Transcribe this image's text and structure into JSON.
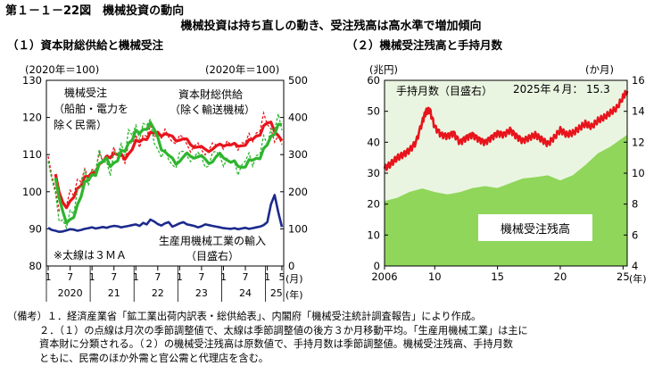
{
  "figure": {
    "title": "第１－１－22図　機械投資の動向",
    "subtitle": "機械投資は持ち直しの動き、受注残高は高水準で増加傾向"
  },
  "panel1": {
    "title": "（１）資本財総供給と機械受注",
    "left_unit": "(2020年＝100)",
    "right_unit": "(2020年＝100)",
    "label_orders": [
      "機械受注",
      "（船舶・電力を",
      "除く民需）"
    ],
    "label_supply": [
      "資本財総供給",
      "（除く輸送機械）"
    ],
    "label_imports": [
      "生産用機械工業の輸入",
      "（目盛右）"
    ],
    "note_3ma": "※太線は３ＭＡ",
    "month_label": "(月)",
    "year_label": "(年)"
  },
  "panel2": {
    "title": "（２）機械受注残高と手持月数",
    "left_unit": "(兆円)",
    "right_unit": "(か月)",
    "label_months": "手持月数（目盛右）",
    "label_latest_prefix": "2025年４月：",
    "label_latest_value": "15.3",
    "label_backlog": "機械受注残高",
    "year_label": "(年)"
  },
  "colors": {
    "red": "#e8141c",
    "green": "#2eb52e",
    "navy": "#1b2a8c",
    "area": "#8fd65a",
    "area_bg": "#eaf5e1",
    "latest_value": "#8a8aa8"
  },
  "chart_data": [
    {
      "type": "line",
      "title": "（１）資本財総供給と機械受注",
      "x_start": "2020-01",
      "x_end": "2025-05",
      "x_tick_months": [
        "1",
        "7",
        "1",
        "7",
        "1",
        "7",
        "1",
        "7",
        "1",
        "7",
        "1",
        "5"
      ],
      "x_tick_years": [
        "2020",
        "21",
        "22",
        "23",
        "24",
        "25"
      ],
      "ylim_left": [
        80,
        130
      ],
      "yticks_left": [
        "80",
        "90",
        "100",
        "110",
        "120",
        "130"
      ],
      "ylim_right": [
        0,
        500
      ],
      "yticks_right": [
        "0",
        "100",
        "200",
        "300",
        "400",
        "500"
      ],
      "series": [
        {
          "name": "資本財総供給（除く輸送機械）",
          "axis": "left",
          "color": "red",
          "style": "dotted-monthly + thick-3MA",
          "values": [
            108,
            104,
            100,
            97,
            95,
            96,
            99,
            101,
            103,
            103,
            104,
            105,
            106,
            107,
            108,
            109,
            110,
            111,
            110,
            109,
            109,
            110,
            112,
            113,
            114,
            114,
            115,
            115,
            116,
            116,
            116,
            115,
            115,
            115,
            114,
            114,
            114,
            114,
            113,
            112,
            112,
            112,
            111,
            111,
            112,
            112,
            112,
            113,
            113,
            113,
            112,
            112,
            113,
            113,
            113,
            114,
            115,
            116,
            117,
            119,
            119,
            117,
            115,
            113,
            113
          ]
        },
        {
          "name": "機械受注（船舶・電力を除く民需）",
          "axis": "left",
          "color": "green",
          "style": "dotted-monthly + thick-3MA",
          "values": [
            106,
            103,
            99,
            95,
            91,
            90,
            93,
            97,
            100,
            102,
            103,
            104,
            106,
            107,
            108,
            109,
            108,
            107,
            108,
            110,
            112,
            113,
            115,
            115,
            116,
            117,
            118,
            118,
            117,
            115,
            112,
            110,
            109,
            109,
            108,
            108,
            109,
            110,
            110,
            110,
            109,
            109,
            109,
            108,
            108,
            109,
            110,
            110,
            109,
            108,
            107,
            107,
            107,
            107,
            108,
            108,
            109,
            110,
            111,
            112,
            114,
            117,
            119,
            118,
            117
          ]
        },
        {
          "name": "生産用機械工業の輸入（目盛右）",
          "axis": "right",
          "color": "navy",
          "style": "thick",
          "values": [
            103,
            97,
            95,
            92,
            93,
            96,
            99,
            98,
            95,
            97,
            100,
            102,
            104,
            101,
            103,
            105,
            103,
            106,
            108,
            107,
            104,
            106,
            108,
            110,
            112,
            108,
            116,
            112,
            125,
            120,
            113,
            109,
            115,
            118,
            106,
            110,
            115,
            118,
            112,
            110,
            108,
            104,
            107,
            112,
            110,
            108,
            106,
            104,
            102,
            101,
            100,
            102,
            99,
            101,
            103,
            100,
            102,
            104,
            106,
            110,
            118,
            166,
            191,
            145,
            105
          ]
        }
      ]
    },
    {
      "type": "area",
      "title": "（２）機械受注残高と手持月数",
      "x_start": 2006,
      "x_end": 2025.33,
      "x_ticks": [
        "2006",
        "10",
        "15",
        "20",
        "25"
      ],
      "ylim_left": [
        0,
        60
      ],
      "yticks_left": [
        "0",
        "10",
        "20",
        "30",
        "40",
        "50",
        "60"
      ],
      "ylim_right": [
        4,
        16
      ],
      "yticks_right": [
        "4",
        "6",
        "8",
        "10",
        "12",
        "14",
        "16"
      ],
      "series": [
        {
          "name": "機械受注残高",
          "axis": "left",
          "color": "area",
          "years": [
            2006,
            2007,
            2008,
            2009,
            2010,
            2011,
            2012,
            2013,
            2014,
            2015,
            2016,
            2017,
            2018,
            2019,
            2020,
            2021,
            2022,
            2023,
            2024,
            2025.33
          ],
          "values": [
            21,
            22,
            24,
            25,
            24,
            23,
            24,
            25,
            26,
            25,
            27,
            28,
            29,
            29,
            28,
            29,
            33,
            36,
            39,
            42
          ]
        },
        {
          "name": "手持月数（目盛右）",
          "axis": "right",
          "color": "red",
          "years": [
            2006,
            2006.5,
            2007,
            2007.5,
            2008,
            2008.5,
            2009,
            2009.3,
            2009.6,
            2010,
            2010.5,
            2011,
            2011.5,
            2012,
            2012.5,
            2013,
            2013.5,
            2014,
            2014.5,
            2015,
            2015.5,
            2016,
            2016.5,
            2017,
            2017.5,
            2018,
            2018.5,
            2019,
            2019.5,
            2020,
            2020.5,
            2021,
            2021.5,
            2022,
            2022.5,
            2023,
            2023.5,
            2024,
            2024.5,
            2025,
            2025.33
          ],
          "values": [
            10.3,
            10.6,
            11.0,
            11.2,
            11.5,
            12.0,
            13.3,
            14.0,
            14.1,
            13.0,
            12.5,
            12.4,
            12.6,
            12.0,
            12.3,
            12.5,
            12.2,
            12.0,
            12.3,
            12.6,
            12.5,
            12.8,
            12.4,
            12.1,
            12.3,
            12.5,
            12.2,
            11.9,
            12.3,
            12.8,
            12.5,
            12.6,
            12.9,
            13.2,
            13.0,
            13.4,
            13.6,
            13.9,
            14.2,
            14.9,
            15.3
          ]
        }
      ]
    }
  ],
  "notes": [
    {
      "head": "（備考）",
      "text": "１．経済産業省「鉱工業出荷内訳表・総供給表」、内閣府「機械受注統計調査報告」により作成。"
    },
    {
      "head": "",
      "text": "２．（１）の点線は月次の季節調整値で、太線は季節調整値の後方３か月移動平均。「生産用機械工業」は主に"
    },
    {
      "head": "",
      "text": "資本財に分類される。（２）の機械受注残高は原数値で、手持月数は季節調整値。機械受注残高、手持月数"
    },
    {
      "head": "",
      "text": "ともに、民需のほか外需と官公需と代理店を含む。"
    }
  ]
}
